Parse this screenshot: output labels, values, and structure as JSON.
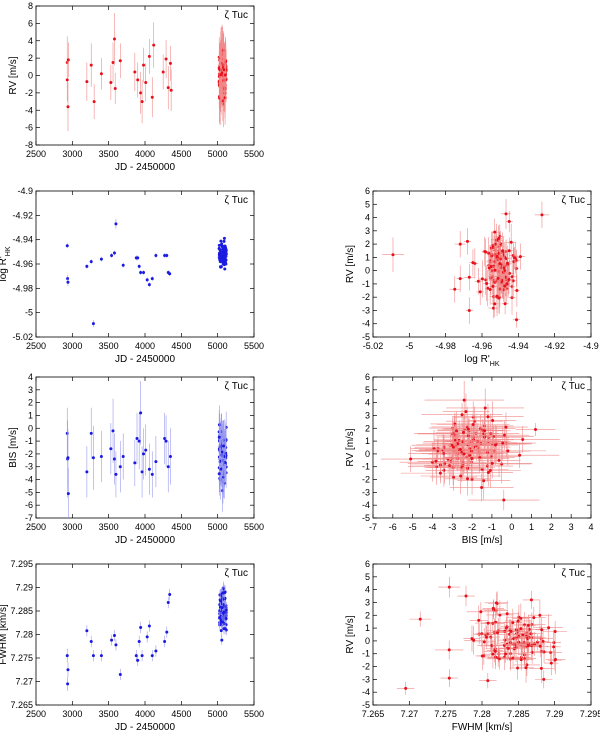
{
  "figure": {
    "star_label": "ζ Tuc",
    "colors": {
      "red": "#e8101a",
      "blue": "#1a1ae0",
      "axis": "#000000",
      "errbar_red": "#f08a8a",
      "errbar_blue": "#9a9af0"
    }
  },
  "chart_data": [
    {
      "id": "rv_time",
      "type": "scatter",
      "series_color": "red",
      "xlabel": "JD - 2450000",
      "ylabel": "RV [m/s]",
      "annotation": "ζ Tuc",
      "xlim": [
        2500,
        5500
      ],
      "ylim": [
        -8,
        8
      ],
      "xticks": [
        "2500",
        "3000",
        "3500",
        "4000",
        "4500",
        "5000",
        "5500"
      ],
      "yticks": [
        "-8",
        "-6",
        "-4",
        "-2",
        "0",
        "2",
        "4",
        "6",
        "8"
      ],
      "points": [
        [
          2930,
          1.5,
          3.0
        ],
        [
          2930,
          -0.5,
          2.5
        ],
        [
          2940,
          -3.6,
          2.8
        ],
        [
          2945,
          1.8,
          2.0
        ],
        [
          3200,
          -0.7,
          2.2
        ],
        [
          3260,
          1.2,
          2.5
        ],
        [
          3300,
          -3.0,
          2.0
        ],
        [
          3400,
          0.2,
          1.8
        ],
        [
          3530,
          -0.8,
          2.0
        ],
        [
          3560,
          1.5,
          2.3
        ],
        [
          3580,
          4.2,
          3.0
        ],
        [
          3590,
          -1.5,
          1.8
        ],
        [
          3660,
          1.7,
          2.0
        ],
        [
          3860,
          0.4,
          2.2
        ],
        [
          3900,
          -0.5,
          2.0
        ],
        [
          3940,
          -2.0,
          2.4
        ],
        [
          3960,
          -3.0,
          2.5
        ],
        [
          3980,
          1.2,
          2.0
        ],
        [
          4010,
          -0.8,
          2.2
        ],
        [
          4060,
          2.2,
          2.0
        ],
        [
          4100,
          -2.5,
          2.3
        ],
        [
          4120,
          3.5,
          2.6
        ],
        [
          4250,
          0.4,
          2.0
        ],
        [
          4290,
          1.9,
          2.2
        ],
        [
          4320,
          -1.4,
          2.5
        ],
        [
          4350,
          1.4,
          2.0
        ],
        [
          4360,
          -1.7,
          2.4
        ]
      ],
      "dense_cluster": {
        "x_range": [
          5020,
          5120
        ],
        "y_mean": 0.3,
        "y_sd": 1.3,
        "n": 120,
        "err_mean": 2.5
      }
    },
    {
      "id": "rhk_time",
      "type": "scatter",
      "series_color": "blue",
      "xlabel": "JD - 2450000",
      "ylabel": "log R'HK",
      "annotation": "ζ Tuc",
      "xlim": [
        2500,
        5500
      ],
      "ylim": [
        -5.02,
        -4.9
      ],
      "xticks": [
        "2500",
        "3000",
        "3500",
        "4000",
        "4500",
        "5000",
        "5500"
      ],
      "yticks": [
        "-5.02",
        "-5",
        "-4.98",
        "-4.96",
        "-4.94",
        "-4.92",
        "-4.9"
      ],
      "points": [
        [
          2930,
          -4.945,
          0.002
        ],
        [
          2935,
          -4.972,
          0.003
        ],
        [
          2940,
          -4.975,
          0.003
        ],
        [
          3200,
          -4.962,
          0.002
        ],
        [
          3260,
          -4.958,
          0.002
        ],
        [
          3290,
          -5.009,
          0.003
        ],
        [
          3400,
          -4.956,
          0.002
        ],
        [
          3540,
          -4.953,
          0.002
        ],
        [
          3580,
          -4.951,
          0.002
        ],
        [
          3600,
          -4.927,
          0.004
        ],
        [
          3700,
          -4.961,
          0.002
        ],
        [
          3880,
          -4.955,
          0.002
        ],
        [
          3900,
          -4.955,
          0.002
        ],
        [
          3920,
          -4.962,
          0.002
        ],
        [
          3940,
          -4.967,
          0.002
        ],
        [
          3980,
          -4.967,
          0.002
        ],
        [
          4030,
          -4.973,
          0.002
        ],
        [
          4060,
          -4.977,
          0.002
        ],
        [
          4100,
          -4.972,
          0.002
        ],
        [
          4150,
          -4.953,
          0.002
        ],
        [
          4270,
          -4.953,
          0.002
        ],
        [
          4300,
          -4.953,
          0.002
        ],
        [
          4320,
          -4.967,
          0.002
        ],
        [
          4340,
          -4.968,
          0.002
        ]
      ],
      "dense_cluster": {
        "x_range": [
          5020,
          5120
        ],
        "y_mean": -4.952,
        "y_sd": 0.004,
        "n": 110,
        "err_mean": 0.001
      }
    },
    {
      "id": "rv_vs_rhk",
      "type": "scatter",
      "series_color": "red",
      "xlabel": "log R'HK",
      "ylabel": "RV [m/s]",
      "annotation": "ζ Tuc",
      "xlim": [
        -5.02,
        -4.9
      ],
      "ylim": [
        -5,
        6
      ],
      "xticks": [
        "-5.02",
        "-5",
        "-4.98",
        "-4.96",
        "-4.94",
        "-4.92",
        "-4.9"
      ],
      "yticks": [
        "-5",
        "-4",
        "-3",
        "-2",
        "-1",
        "0",
        "1",
        "2",
        "3",
        "4",
        "5",
        "6"
      ],
      "points": [
        [
          -5.009,
          1.2,
          1.3,
          0.006
        ],
        [
          -4.927,
          4.2,
          1.0,
          0.004
        ],
        [
          -4.972,
          2.0,
          1.0,
          0.003
        ],
        [
          -4.967,
          -0.5,
          1.0,
          0.003
        ],
        [
          -4.975,
          -1.4,
          1.0,
          0.003
        ],
        [
          -4.962,
          -0.8,
          1.0,
          0.002
        ],
        [
          -4.958,
          1.4,
          1.0,
          0.002
        ],
        [
          -4.956,
          0.2,
          1.0,
          0.002
        ],
        [
          -4.945,
          1.5,
          1.0,
          0.002
        ],
        [
          -4.961,
          -1.6,
          1.0,
          0.002
        ],
        [
          -4.967,
          -3.0,
          1.0,
          0.002
        ],
        [
          -4.953,
          -2.5,
          1.0,
          0.002
        ],
        [
          -4.945,
          3.7,
          0.8,
          0.002
        ],
        [
          -4.953,
          2.9,
          1.0,
          0.002
        ],
        [
          -4.955,
          0.3,
          1.0,
          0.002
        ],
        [
          -4.968,
          2.2,
          1.0,
          0.002
        ],
        [
          -4.972,
          -0.6,
          1.0,
          0.002
        ],
        [
          -4.965,
          0.6,
          1.0,
          0.002
        ],
        [
          -4.941,
          -3.7,
          0.6,
          0.002
        ]
      ],
      "dense_cluster": {
        "x_mean": -4.95,
        "x_sd": 0.004,
        "y_mean": 0.3,
        "y_sd": 1.3,
        "n": 120,
        "err_mean": 1.1,
        "xerr_mean": 0.002
      }
    },
    {
      "id": "bis_time",
      "type": "scatter",
      "series_color": "blue",
      "xlabel": "JD - 2450000",
      "ylabel": "BIS [m/s]",
      "annotation": "ζ Tuc",
      "xlim": [
        2500,
        5500
      ],
      "ylim": [
        -7,
        4
      ],
      "xticks": [
        "2500",
        "3000",
        "3500",
        "4000",
        "4500",
        "5000",
        "5500"
      ],
      "yticks": [
        "-7",
        "-6",
        "-5",
        "-4",
        "-3",
        "-2",
        "-1",
        "0",
        "1",
        "2",
        "3",
        "4"
      ],
      "points": [
        [
          2930,
          -0.4,
          2.0
        ],
        [
          2935,
          -2.4,
          3.0
        ],
        [
          2940,
          -2.3,
          2.2
        ],
        [
          2945,
          -5.1,
          2.0
        ],
        [
          3200,
          -3.4,
          2.0
        ],
        [
          3260,
          -0.4,
          2.0
        ],
        [
          3290,
          -2.3,
          2.5
        ],
        [
          3400,
          -2.2,
          2.0
        ],
        [
          3530,
          -1.6,
          2.0
        ],
        [
          3560,
          -0.2,
          2.5
        ],
        [
          3580,
          -2.4,
          2.0
        ],
        [
          3600,
          -3.6,
          1.8
        ],
        [
          3660,
          -3.0,
          2.0
        ],
        [
          3700,
          -2.2,
          1.8
        ],
        [
          3860,
          -2.7,
          1.8
        ],
        [
          3890,
          -0.8,
          2.0
        ],
        [
          3920,
          -1.0,
          2.2
        ],
        [
          3940,
          1.2,
          2.5
        ],
        [
          3960,
          -3.4,
          2.0
        ],
        [
          3980,
          -2.0,
          2.0
        ],
        [
          4010,
          -1.7,
          2.0
        ],
        [
          4060,
          -3.2,
          2.0
        ],
        [
          4100,
          -3.6,
          1.8
        ],
        [
          4150,
          -2.6,
          2.0
        ],
        [
          4270,
          -0.8,
          2.0
        ],
        [
          4290,
          -1.0,
          2.0
        ],
        [
          4320,
          -3.0,
          2.0
        ],
        [
          4350,
          -2.2,
          2.2
        ]
      ],
      "dense_cluster": {
        "x_range": [
          5020,
          5120
        ],
        "y_mean": -2.0,
        "y_sd": 1.0,
        "n": 110,
        "err_mean": 1.4
      }
    },
    {
      "id": "rv_vs_bis",
      "type": "scatter",
      "series_color": "red",
      "xlabel": "BIS [m/s]",
      "ylabel": "RV [m/s]",
      "annotation": "ζ Tuc",
      "xlim": [
        -7,
        4
      ],
      "ylim": [
        -5,
        6
      ],
      "xticks": [
        "-7",
        "-6",
        "-5",
        "-4",
        "-3",
        "-2",
        "-1",
        "0",
        "1",
        "2",
        "3",
        "4"
      ],
      "yticks": [
        "-5",
        "-4",
        "-3",
        "-2",
        "-1",
        "0",
        "1",
        "2",
        "3",
        "4",
        "5",
        "6"
      ],
      "points": [
        [
          1.2,
          1.9,
          0.5,
          1.0
        ],
        [
          -5.1,
          -0.4,
          1.0,
          1.5
        ],
        [
          -0.4,
          -3.6,
          0.8,
          1.8
        ],
        [
          -2.4,
          4.2,
          1.5,
          2.0
        ],
        [
          0.4,
          -0.1,
          1.0,
          2.0
        ],
        [
          -3.6,
          -1.5,
          0.8,
          2.0
        ],
        [
          -1.2,
          2.9,
          1.0,
          1.8
        ]
      ],
      "dense_cluster": {
        "x_mean": -2.2,
        "x_sd": 1.0,
        "y_mean": 0.3,
        "y_sd": 1.3,
        "n": 120,
        "err_mean": 1.2,
        "xerr_mean": 1.5
      }
    },
    {
      "id": "fwhm_time",
      "type": "scatter",
      "series_color": "blue",
      "xlabel": "JD - 2450000",
      "ylabel": "FWHM [km/s]",
      "annotation": "ζ Tuc",
      "xlim": [
        2500,
        5500
      ],
      "ylim": [
        7.265,
        7.295
      ],
      "xticks": [
        "2500",
        "3000",
        "3500",
        "4000",
        "4500",
        "5000",
        "5500"
      ],
      "yticks": [
        "7.265",
        "7.27",
        "7.275",
        "7.28",
        "7.285",
        "7.29",
        "7.295"
      ],
      "points": [
        [
          2930,
          7.2755,
          0.0015
        ],
        [
          2935,
          7.2695,
          0.0015
        ],
        [
          2940,
          7.2725,
          0.0015
        ],
        [
          3200,
          7.2808,
          0.0012
        ],
        [
          3260,
          7.2785,
          0.0012
        ],
        [
          3290,
          7.2755,
          0.0012
        ],
        [
          3400,
          7.2755,
          0.0012
        ],
        [
          3540,
          7.2788,
          0.0012
        ],
        [
          3580,
          7.2798,
          0.0012
        ],
        [
          3600,
          7.2778,
          0.0012
        ],
        [
          3660,
          7.2715,
          0.0012
        ],
        [
          3880,
          7.2755,
          0.0012
        ],
        [
          3900,
          7.2745,
          0.0012
        ],
        [
          3920,
          7.2785,
          0.0012
        ],
        [
          3940,
          7.2815,
          0.0012
        ],
        [
          3960,
          7.2755,
          0.0012
        ],
        [
          4030,
          7.2795,
          0.0012
        ],
        [
          4060,
          7.2818,
          0.0012
        ],
        [
          4100,
          7.2755,
          0.0012
        ],
        [
          4150,
          7.2765,
          0.0012
        ],
        [
          4270,
          7.2785,
          0.0012
        ],
        [
          4300,
          7.2805,
          0.0012
        ],
        [
          4320,
          7.2868,
          0.0012
        ],
        [
          4340,
          7.2885,
          0.0012
        ]
      ],
      "dense_cluster": {
        "x_range": [
          5020,
          5120
        ],
        "y_mean": 7.285,
        "y_sd": 0.0025,
        "n": 110,
        "err_mean": 0.0012
      }
    },
    {
      "id": "rv_vs_fwhm",
      "type": "scatter",
      "series_color": "red",
      "xlabel": "FWHM [km/s]",
      "ylabel": "RV [m/s]",
      "annotation": "ζ Tuc",
      "xlim": [
        7.265,
        7.295
      ],
      "ylim": [
        -5,
        6
      ],
      "xticks": [
        "7.265",
        "7.27",
        "7.275",
        "7.28",
        "7.285",
        "7.29",
        "7.295"
      ],
      "yticks": [
        "-5",
        "-4",
        "-3",
        "-2",
        "-1",
        "0",
        "1",
        "2",
        "3",
        "4",
        "5",
        "6"
      ],
      "points": [
        [
          7.2695,
          -3.7,
          0.5,
          0.0012
        ],
        [
          7.2715,
          1.7,
          0.6,
          0.0015
        ],
        [
          7.2755,
          4.2,
          0.8,
          0.0015
        ],
        [
          7.2778,
          3.5,
          0.8,
          0.0012
        ],
        [
          7.2755,
          -2.9,
          0.7,
          0.0012
        ],
        [
          7.2808,
          -3.1,
          0.6,
          0.0012
        ],
        [
          7.2868,
          3.2,
          0.7,
          0.0012
        ],
        [
          7.2885,
          -3.0,
          0.7,
          0.0012
        ]
      ],
      "dense_cluster": {
        "x_mean": 7.2845,
        "x_sd": 0.003,
        "y_mean": 0.1,
        "y_sd": 1.2,
        "n": 120,
        "err_mean": 0.9,
        "xerr_mean": 0.0014
      }
    }
  ]
}
